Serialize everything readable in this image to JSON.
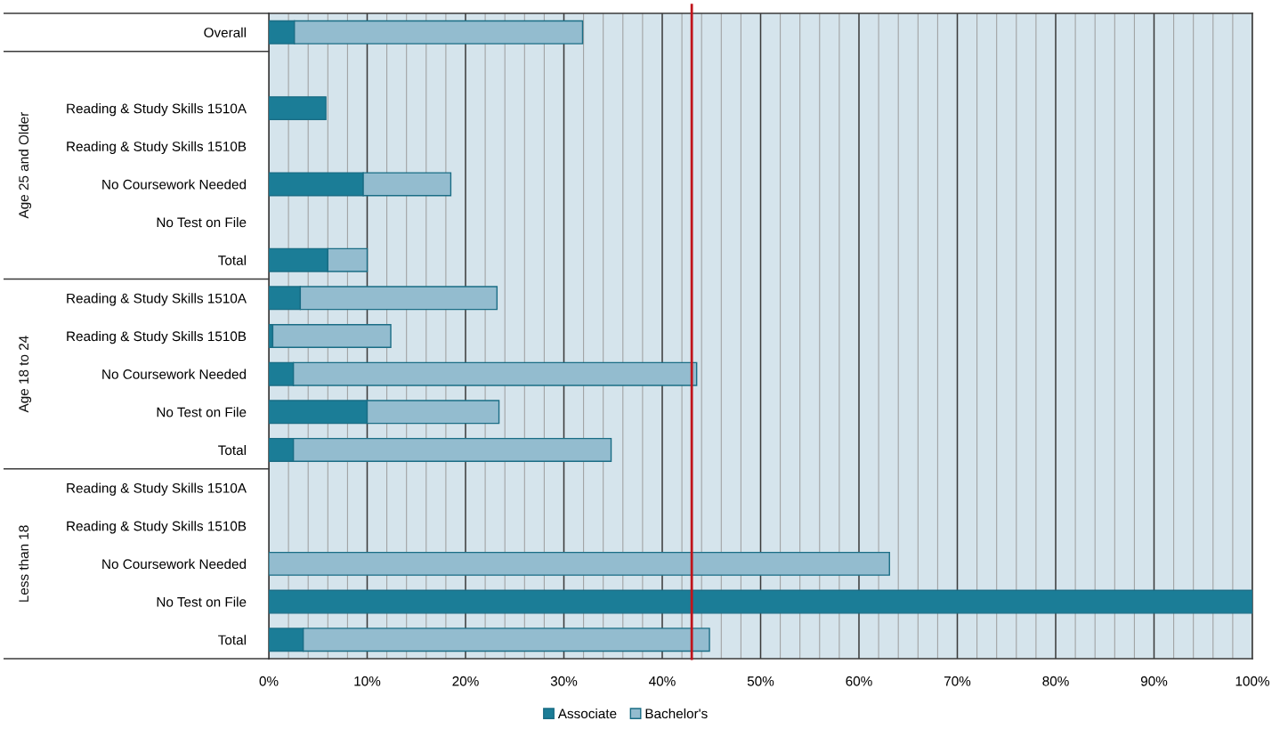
{
  "chart_data": {
    "type": "bar",
    "orientation": "horizontal",
    "stacked": true,
    "categories": [
      "Overall",
      null,
      "Reading & Study Skills 1510A",
      "Reading & Study Skills 1510B",
      "No Coursework Needed",
      "No Test on File",
      "Total",
      "Reading & Study Skills 1510A",
      "Reading & Study Skills 1510B",
      "No Coursework Needed",
      "No Test on File",
      "Total",
      "Reading & Study Skills 1510A",
      "Reading & Study Skills 1510B",
      "No Coursework Needed",
      "No Test on File",
      "Total"
    ],
    "series": [
      {
        "name": "Associate",
        "color": "#1b7d97",
        "values": [
          2.6,
          null,
          5.8,
          null,
          9.6,
          null,
          6.0,
          3.2,
          0.4,
          2.5,
          10.0,
          2.5,
          null,
          null,
          null,
          100,
          3.5
        ]
      },
      {
        "name": "Bachelor's",
        "color": "#93bccf",
        "values": [
          29.3,
          null,
          null,
          null,
          8.9,
          null,
          4.0,
          20.0,
          12.0,
          41.0,
          13.4,
          32.3,
          null,
          null,
          63.1,
          null,
          41.3
        ]
      }
    ],
    "xlim": [
      0,
      100
    ],
    "xticks": [
      {
        "value": 0,
        "label": "0%"
      },
      {
        "value": 2,
        "label": null
      },
      {
        "value": 4,
        "label": null
      },
      {
        "value": 6,
        "label": null
      },
      {
        "value": 8,
        "label": null
      },
      {
        "value": 10,
        "label": "10%"
      },
      {
        "value": 12,
        "label": null
      },
      {
        "value": 14,
        "label": null
      },
      {
        "value": 16,
        "label": null
      },
      {
        "value": 18,
        "label": null
      },
      {
        "value": 20,
        "label": "20%"
      },
      {
        "value": 22,
        "label": null
      },
      {
        "value": 24,
        "label": null
      },
      {
        "value": 26,
        "label": null
      },
      {
        "value": 28,
        "label": null
      },
      {
        "value": 30,
        "label": "30%"
      },
      {
        "value": 32,
        "label": null
      },
      {
        "value": 34,
        "label": null
      },
      {
        "value": 36,
        "label": null
      },
      {
        "value": 38,
        "label": null
      },
      {
        "value": 40,
        "label": "40%"
      },
      {
        "value": 42,
        "label": null
      },
      {
        "value": 44,
        "label": null
      },
      {
        "value": 46,
        "label": null
      },
      {
        "value": 48,
        "label": null
      },
      {
        "value": 50,
        "label": "50%"
      },
      {
        "value": 52,
        "label": null
      },
      {
        "value": 54,
        "label": null
      },
      {
        "value": 56,
        "label": null
      },
      {
        "value": 58,
        "label": null
      },
      {
        "value": 60,
        "label": "60%"
      },
      {
        "value": 62,
        "label": null
      },
      {
        "value": 64,
        "label": null
      },
      {
        "value": 66,
        "label": null
      },
      {
        "value": 68,
        "label": null
      },
      {
        "value": 70,
        "label": "70%"
      },
      {
        "value": 72,
        "label": null
      },
      {
        "value": 74,
        "label": null
      },
      {
        "value": 76,
        "label": null
      },
      {
        "value": 78,
        "label": null
      },
      {
        "value": 80,
        "label": "80%"
      },
      {
        "value": 82,
        "label": null
      },
      {
        "value": 84,
        "label": null
      },
      {
        "value": 86,
        "label": null
      },
      {
        "value": 88,
        "label": null
      },
      {
        "value": 90,
        "label": "90%"
      },
      {
        "value": 92,
        "label": null
      },
      {
        "value": 94,
        "label": null
      },
      {
        "value": 96,
        "label": null
      },
      {
        "value": 98,
        "label": null
      },
      {
        "value": 100,
        "label": "100%"
      }
    ],
    "ref_lines": [
      {
        "axis": "x",
        "value": 43,
        "color": "#c0141b"
      }
    ],
    "annotations": [
      "Age 25 and Older",
      "Age 18 to 24",
      "Less than 18"
    ],
    "grid": "x",
    "legend": "bottom"
  }
}
